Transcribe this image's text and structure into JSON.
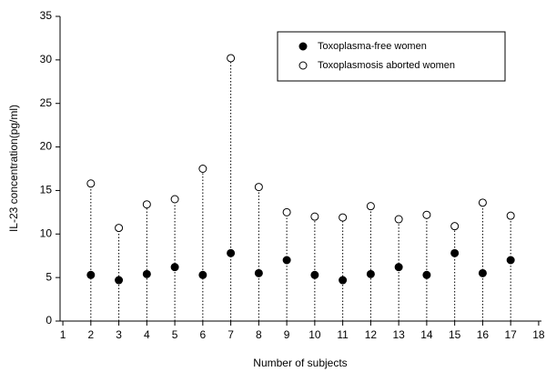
{
  "chart_data": {
    "type": "scatter",
    "xlabel": "Number of subjects",
    "ylabel": "IL-23 concentration(pg/ml)",
    "x": [
      2,
      3,
      4,
      5,
      6,
      7,
      8,
      9,
      10,
      11,
      12,
      13,
      14,
      15,
      16,
      17
    ],
    "series": [
      {
        "name": "Toxoplasma-free women",
        "color": "#000000",
        "values": [
          5.3,
          4.7,
          5.4,
          6.2,
          5.3,
          7.8,
          5.5,
          7.0,
          5.3,
          4.7,
          5.4,
          6.2,
          5.3,
          7.8,
          5.5,
          7.0
        ]
      },
      {
        "name": "Toxoplasmosis aborted women",
        "color": "#ffffff",
        "values": [
          15.8,
          10.7,
          13.4,
          14.0,
          17.5,
          30.2,
          15.4,
          12.5,
          12.0,
          11.9,
          13.2,
          11.7,
          12.2,
          10.9,
          13.6,
          12.1
        ]
      }
    ],
    "xlim": [
      0.9,
      18.1
    ],
    "xticks": [
      1,
      2,
      3,
      4,
      5,
      6,
      7,
      8,
      9,
      10,
      11,
      12,
      13,
      14,
      15,
      16,
      17,
      18
    ],
    "ylim": [
      0,
      35
    ],
    "yticks": [
      0,
      5,
      10,
      15,
      20,
      25,
      30,
      35
    ],
    "stems": true,
    "legend": "upper right"
  }
}
